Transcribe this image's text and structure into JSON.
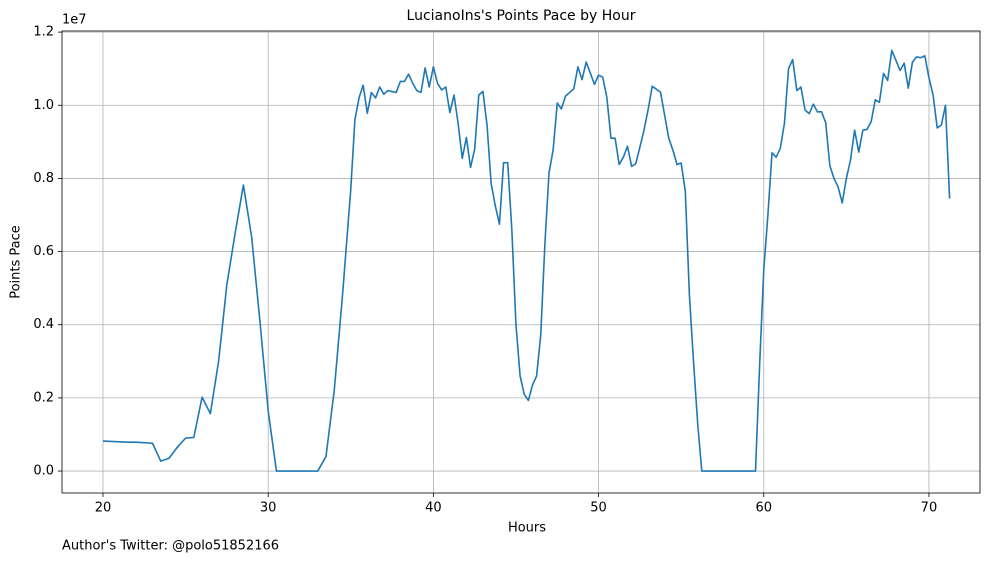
{
  "chart_data": {
    "type": "line",
    "title": "LucianoIns's Points Pace by Hour",
    "x_label": "Hours",
    "y_label": "Points Pace",
    "y_offset_label": "1e7",
    "footnote": "Author's Twitter: @polo51852166",
    "color": "#1f77b4",
    "grid": true,
    "xlim": [
      17.52,
      73.09
    ],
    "ylim": [
      -600000,
      12030000
    ],
    "xticks": [
      20,
      30,
      40,
      50,
      60,
      70
    ],
    "yticks": [
      {
        "value": 0,
        "label": "0.0"
      },
      {
        "value": 2000000,
        "label": "0.2"
      },
      {
        "value": 4000000,
        "label": "0.4"
      },
      {
        "value": 6000000,
        "label": "0.6"
      },
      {
        "value": 8000000,
        "label": "0.8"
      },
      {
        "value": 10000000,
        "label": "1.0"
      },
      {
        "value": 12000000,
        "label": "1.2"
      }
    ],
    "x": [
      20,
      21,
      21.5,
      22,
      23,
      23.5,
      24,
      24.5,
      25,
      25.5,
      26,
      26.5,
      27,
      27.5,
      28,
      28.5,
      29,
      29.5,
      30,
      30.5,
      33,
      33.5,
      34,
      34.5,
      35,
      35.25,
      35.5,
      35.75,
      36,
      36.25,
      36.5,
      36.75,
      37,
      37.25,
      37.75,
      38,
      38.25,
      38.5,
      38.75,
      39,
      39.25,
      39.5,
      39.75,
      40,
      40.25,
      40.5,
      40.75,
      41,
      41.25,
      41.5,
      41.75,
      42,
      42.25,
      42.5,
      42.75,
      43,
      43.25,
      43.5,
      43.75,
      44,
      44.25,
      44.5,
      44.75,
      45,
      45.25,
      45.5,
      45.75,
      46,
      46.25,
      46.5,
      46.75,
      47,
      47.25,
      47.5,
      47.75,
      48,
      48.25,
      48.5,
      48.75,
      49,
      49.25,
      49.5,
      49.75,
      50,
      50.25,
      50.5,
      50.75,
      51,
      51.25,
      51.5,
      51.75,
      52,
      52.25,
      52.5,
      52.75,
      53,
      53.25,
      53.5,
      53.75,
      54,
      54.25,
      54.5,
      54.75,
      55,
      55.25,
      55.5,
      55.75,
      56,
      56.25,
      59.5,
      59.75,
      60,
      60.25,
      60.5,
      60.75,
      61,
      61.25,
      61.5,
      61.75,
      62,
      62.25,
      62.5,
      62.75,
      63,
      63.25,
      63.5,
      63.75,
      64,
      64.25,
      64.5,
      64.75,
      65,
      65.25,
      65.5,
      65.75,
      66,
      66.25,
      66.5,
      66.75,
      67,
      67.25,
      67.5,
      67.75,
      68,
      68.25,
      68.5,
      68.75,
      69,
      69.25,
      69.5,
      69.75,
      70,
      70.25,
      70.5,
      70.75,
      71,
      71.25
    ],
    "values": [
      820000,
      800000,
      790000,
      790000,
      760000,
      270000,
      350000,
      650000,
      900000,
      920000,
      2020000,
      1570000,
      3000000,
      5100000,
      6500000,
      7820000,
      6400000,
      4100000,
      1650000,
      0,
      0,
      400000,
      2200000,
      4800000,
      7700000,
      9600000,
      10200000,
      10550000,
      9780000,
      10350000,
      10200000,
      10500000,
      10300000,
      10400000,
      10350000,
      10650000,
      10650000,
      10850000,
      10600000,
      10400000,
      10350000,
      11020000,
      10500000,
      11050000,
      10600000,
      10420000,
      10500000,
      9800000,
      10280000,
      9500000,
      8550000,
      9120000,
      8300000,
      8800000,
      10280000,
      10380000,
      9450000,
      7850000,
      7250000,
      6750000,
      8430000,
      8430000,
      6600000,
      4000000,
      2600000,
      2100000,
      1930000,
      2350000,
      2600000,
      3720000,
      6200000,
      8150000,
      8780000,
      10060000,
      9900000,
      10250000,
      10350000,
      10450000,
      11050000,
      10700000,
      11180000,
      10880000,
      10570000,
      10820000,
      10770000,
      10220000,
      9100000,
      9100000,
      8380000,
      8580000,
      8880000,
      8330000,
      8400000,
      8850000,
      9320000,
      9880000,
      10520000,
      10440000,
      10360000,
      9730000,
      9100000,
      8770000,
      8380000,
      8420000,
      7650000,
      4800000,
      2980000,
      1300000,
      0,
      0,
      2900000,
      5500000,
      7000000,
      8700000,
      8580000,
      8820000,
      9500000,
      11000000,
      11250000,
      10400000,
      10500000,
      9870000,
      9770000,
      10030000,
      9820000,
      9820000,
      9520000,
      8350000,
      8000000,
      7770000,
      7330000,
      8000000,
      8500000,
      9320000,
      8720000,
      9320000,
      9340000,
      9550000,
      10150000,
      10080000,
      10870000,
      10680000,
      11500000,
      11230000,
      10950000,
      11150000,
      10470000,
      11180000,
      11320000,
      11300000,
      11350000,
      10750000,
      10280000,
      9380000,
      9460000,
      10000000,
      7450000
    ]
  }
}
